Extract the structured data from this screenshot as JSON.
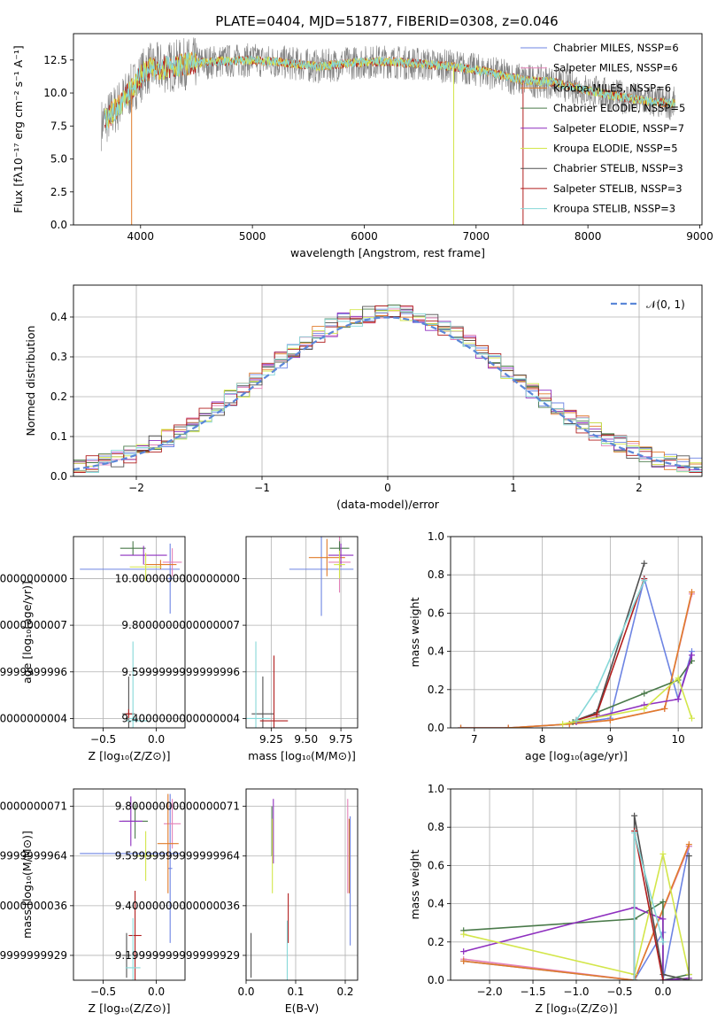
{
  "figure_title": "PLATE=0404, MJD=51877, FIBERID=0308, z=0.046",
  "colors": [
    "#6d84e3",
    "#e382b8",
    "#e07b2a",
    "#4a7a4a",
    "#8e2fbf",
    "#d3e64a",
    "#505050",
    "#b11e1e",
    "#86d8d8"
  ],
  "chart_data": [
    {
      "id": "spectrum",
      "type": "line",
      "title": "PLATE=0404, MJD=51877, FIBERID=0308, z=0.046",
      "xlabel": "wavelength [Angstrom, rest frame]",
      "ylabel": "Flux [fλ10⁻¹⁷ erg cm⁻² s⁻¹ A⁻¹]",
      "xlim": [
        3400,
        9020
      ],
      "ylim": [
        0,
        14.5
      ],
      "xticks": [
        4000,
        5000,
        6000,
        7000,
        8000,
        9000
      ],
      "yticks": [
        0.0,
        2.5,
        5.0,
        7.5,
        10.0,
        12.5
      ],
      "grid": false,
      "legend_position": "right",
      "legend": [
        "Chabrier MILES, NSSP=6",
        "Salpeter MILES, NSSP=6",
        "Kroupa MILES, NSSP=6",
        "Chabrier ELODIE, NSSP=5",
        "Salpeter ELODIE, NSSP=7",
        "Kroupa ELODIE, NSSP=5",
        "Chabrier STELIB, NSSP=3",
        "Salpeter STELIB, NSSP=3",
        "Kroupa STELIB, NSSP=3"
      ],
      "data_profile": {
        "x": [
          3650,
          3800,
          3950,
          4050,
          4200,
          4400,
          4700,
          5000,
          5300,
          5600,
          5900,
          6200,
          6500,
          6800,
          7100,
          7400,
          7700,
          8000,
          8300,
          8600,
          8780
        ],
        "y": [
          7.6,
          9.0,
          10.6,
          11.8,
          11.9,
          12.2,
          12.4,
          12.5,
          12.3,
          12.0,
          12.3,
          12.4,
          12.2,
          12.0,
          11.6,
          11.0,
          10.8,
          10.2,
          9.7,
          9.3,
          9.2
        ]
      },
      "drops": [
        {
          "x": 3920,
          "to": 0
        },
        {
          "x": 6800,
          "to": 0
        },
        {
          "x": 7420,
          "to": 0
        }
      ]
    },
    {
      "id": "residuals",
      "type": "line",
      "xlabel": "(data-model)/error",
      "ylabel": "Normed distribution",
      "xlim": [
        -2.5,
        2.5
      ],
      "ylim": [
        0,
        0.48
      ],
      "xticks": [
        -2,
        -1,
        0,
        1,
        2
      ],
      "yticks": [
        0.0,
        0.1,
        0.2,
        0.3,
        0.4
      ],
      "grid": true,
      "legend": [
        "𝒩(0, 1)"
      ],
      "legend_position": "top-right"
    },
    {
      "id": "age-vs-Z",
      "type": "scatter",
      "xlabel": "Z [log₁₀(Z/Z⊙)]",
      "ylabel": "age  [log₁₀(age/yr)]",
      "xlim": [
        -0.78,
        0.27
      ],
      "ylim": [
        9.36,
        10.18
      ],
      "xticks": [
        -0.5,
        0.0
      ],
      "yticks": [
        9.4,
        9.6,
        9.8,
        10.0
      ],
      "grid": true,
      "points": [
        {
          "c": 0,
          "x": -0.25,
          "y": 10.04,
          "xerr": 0.47,
          "yerr": 0.0
        },
        {
          "c": 0,
          "x": 0.13,
          "y": 10.0,
          "xerr": 0.02,
          "yerr": 0.15
        },
        {
          "c": 1,
          "x": 0.15,
          "y": 10.07,
          "xerr": 0.09,
          "yerr": 0.06
        },
        {
          "c": 2,
          "x": 0.04,
          "y": 10.06,
          "xerr": 0.15,
          "yerr": 0.02
        },
        {
          "c": 3,
          "x": -0.22,
          "y": 10.13,
          "xerr": 0.12,
          "yerr": 0.03
        },
        {
          "c": 4,
          "x": -0.12,
          "y": 10.1,
          "xerr": 0.22,
          "yerr": 0.04
        },
        {
          "c": 5,
          "x": -0.1,
          "y": 10.05,
          "xerr": 0.15,
          "yerr": 0.06
        },
        {
          "c": 6,
          "x": -0.26,
          "y": 9.42,
          "xerr": 0.06,
          "yerr": 0.16
        },
        {
          "c": 7,
          "x": -0.26,
          "y": 9.42,
          "xerr": 0.03,
          "yerr": 0.02
        },
        {
          "c": 8,
          "x": -0.22,
          "y": 9.4,
          "xerr": 0.04,
          "yerr": 0.33
        },
        {
          "c": 8,
          "x": -0.18,
          "y": 9.39,
          "xerr": 0.1,
          "yerr": 0.0
        }
      ]
    },
    {
      "id": "age-vs-mass",
      "type": "scatter",
      "xlabel": "mass [log₁₀(M/M⊙)]",
      "ylabel": "",
      "xlim": [
        9.07,
        9.87
      ],
      "ylim": [
        9.36,
        10.18
      ],
      "xticks": [
        9.25,
        9.5,
        9.75
      ],
      "yticks": [
        9.4,
        9.6,
        9.8,
        10.0
      ],
      "grid": true,
      "points": [
        {
          "c": 0,
          "x": 9.61,
          "y": 10.04,
          "xerr": 0.23,
          "yerr": 0.2
        },
        {
          "c": 1,
          "x": 9.74,
          "y": 10.07,
          "xerr": 0.08,
          "yerr": 0.13
        },
        {
          "c": 2,
          "x": 9.65,
          "y": 10.09,
          "xerr": 0.13,
          "yerr": 0.08
        },
        {
          "c": 3,
          "x": 9.74,
          "y": 10.13,
          "xerr": 0.07,
          "yerr": 0.03
        },
        {
          "c": 4,
          "x": 9.75,
          "y": 10.1,
          "xerr": 0.09,
          "yerr": 0.05
        },
        {
          "c": 5,
          "x": 9.74,
          "y": 10.06,
          "xerr": 0.04,
          "yerr": 0.06
        },
        {
          "c": 6,
          "x": 9.19,
          "y": 9.42,
          "xerr": 0.08,
          "yerr": 0.16
        },
        {
          "c": 7,
          "x": 9.27,
          "y": 9.39,
          "xerr": 0.1,
          "yerr": 0.28
        },
        {
          "c": 8,
          "x": 9.14,
          "y": 9.4,
          "xerr": 0.1,
          "yerr": 0.33
        }
      ]
    },
    {
      "id": "massweight-vs-age",
      "type": "line",
      "xlabel": "age  [log₁₀(age/yr)]",
      "ylabel": "mass weight",
      "xlim": [
        6.65,
        10.35
      ],
      "ylim": [
        0,
        1.0
      ],
      "xticks": [
        7,
        8,
        9,
        10
      ],
      "yticks": [
        0.0,
        0.2,
        0.4,
        0.6,
        0.8,
        1.0
      ],
      "grid": true,
      "series": [
        {
          "c": 0,
          "x": [
            6.8,
            7.5,
            8.4,
            9.0,
            9.5,
            10.0,
            10.2
          ],
          "y": [
            0.0,
            0.0,
            0.02,
            0.05,
            0.78,
            0.15,
            0.4
          ]
        },
        {
          "c": 1,
          "x": [
            6.8,
            7.5,
            8.4,
            9.0,
            9.8,
            10.2
          ],
          "y": [
            0.0,
            0.0,
            0.02,
            0.04,
            0.1,
            0.7
          ]
        },
        {
          "c": 2,
          "x": [
            6.8,
            7.5,
            8.4,
            9.0,
            9.8,
            10.2
          ],
          "y": [
            0.0,
            0.0,
            0.02,
            0.04,
            0.1,
            0.71
          ]
        },
        {
          "c": 3,
          "x": [
            8.45,
            9.5,
            10.0,
            10.2
          ],
          "y": [
            0.03,
            0.18,
            0.25,
            0.35
          ]
        },
        {
          "c": 4,
          "x": [
            8.5,
            9.5,
            10.0,
            10.2
          ],
          "y": [
            0.03,
            0.12,
            0.15,
            0.38
          ]
        },
        {
          "c": 5,
          "x": [
            8.3,
            9.5,
            10.0,
            10.2
          ],
          "y": [
            0.02,
            0.1,
            0.26,
            0.05
          ]
        },
        {
          "c": 6,
          "x": [
            8.5,
            8.8,
            9.5
          ],
          "y": [
            0.04,
            0.08,
            0.86
          ]
        },
        {
          "c": 7,
          "x": [
            8.5,
            8.8,
            9.5
          ],
          "y": [
            0.04,
            0.07,
            0.78
          ]
        },
        {
          "c": 8,
          "x": [
            8.5,
            8.8,
            9.5
          ],
          "y": [
            0.04,
            0.2,
            0.77
          ]
        }
      ]
    },
    {
      "id": "mass-vs-Z",
      "type": "scatter",
      "xlabel": "Z [log₁₀(Z/Z⊙)]",
      "ylabel": "mass [log₁₀(M/M⊙)]",
      "xlim": [
        -0.78,
        0.27
      ],
      "ylim": [
        9.1,
        9.87
      ],
      "xticks": [
        -0.5,
        0.0
      ],
      "yticks": [
        9.2,
        9.4,
        9.6,
        9.8
      ],
      "grid": true,
      "points": [
        {
          "c": 0,
          "x": -0.25,
          "y": 9.61,
          "xerr": 0.47,
          "yerr": 0.0
        },
        {
          "c": 0,
          "x": 0.13,
          "y": 9.55,
          "xerr": 0.02,
          "yerr": 0.3
        },
        {
          "c": 1,
          "x": 0.15,
          "y": 9.73,
          "xerr": 0.08,
          "yerr": 0.1
        },
        {
          "c": 2,
          "x": 0.11,
          "y": 9.65,
          "xerr": 0.1,
          "yerr": 0.2
        },
        {
          "c": 3,
          "x": -0.2,
          "y": 9.74,
          "xerr": 0.12,
          "yerr": 0.07
        },
        {
          "c": 4,
          "x": -0.24,
          "y": 9.74,
          "xerr": 0.11,
          "yerr": 0.1
        },
        {
          "c": 5,
          "x": -0.1,
          "y": 9.6,
          "xerr": 0.1,
          "yerr": 0.1
        },
        {
          "c": 6,
          "x": -0.28,
          "y": 9.2,
          "xerr": 0.04,
          "yerr": 0.09
        },
        {
          "c": 7,
          "x": -0.2,
          "y": 9.28,
          "xerr": 0.06,
          "yerr": 0.18
        },
        {
          "c": 8,
          "x": -0.22,
          "y": 9.15,
          "xerr": 0.07,
          "yerr": 0.2
        }
      ]
    },
    {
      "id": "mass-vs-ebv",
      "type": "scatter",
      "xlabel": "E(B-V)",
      "ylabel": "",
      "xlim": [
        0.0,
        0.225
      ],
      "ylim": [
        9.1,
        9.87
      ],
      "xticks": [
        0.0,
        0.1,
        0.2
      ],
      "yticks": [
        9.2,
        9.4,
        9.6,
        9.8
      ],
      "grid": true,
      "points": [
        {
          "c": 0,
          "x": 0.21,
          "y": 9.5,
          "xerr": 0.0,
          "yerr": 0.26
        },
        {
          "c": 1,
          "x": 0.205,
          "y": 9.64,
          "xerr": 0.0,
          "yerr": 0.19
        },
        {
          "c": 2,
          "x": 0.208,
          "y": 9.6,
          "xerr": 0.0,
          "yerr": 0.15
        },
        {
          "c": 3,
          "x": 0.052,
          "y": 9.7,
          "xerr": 0.0,
          "yerr": 0.1
        },
        {
          "c": 4,
          "x": 0.055,
          "y": 9.7,
          "xerr": 0.0,
          "yerr": 0.13
        },
        {
          "c": 5,
          "x": 0.053,
          "y": 9.6,
          "xerr": 0.0,
          "yerr": 0.15
        },
        {
          "c": 6,
          "x": 0.01,
          "y": 9.2,
          "xerr": 0.0,
          "yerr": 0.09
        },
        {
          "c": 7,
          "x": 0.085,
          "y": 9.35,
          "xerr": 0.0,
          "yerr": 0.1
        },
        {
          "c": 8,
          "x": 0.083,
          "y": 9.22,
          "xerr": 0.0,
          "yerr": 0.12
        }
      ]
    },
    {
      "id": "massweight-vs-Z",
      "type": "line",
      "xlabel": "Z [log₁₀(Z/Z⊙)]",
      "ylabel": "mass weight",
      "xlim": [
        -2.45,
        0.45
      ],
      "ylim": [
        0,
        1.0
      ],
      "xticks": [
        -2.0,
        -1.5,
        -1.0,
        -0.5,
        0.0
      ],
      "yticks": [
        0.0,
        0.2,
        0.4,
        0.6,
        0.8,
        1.0
      ],
      "grid": true,
      "series": [
        {
          "c": 0,
          "x": [
            -2.3,
            -0.33,
            0.0,
            0.0,
            0.3
          ],
          "y": [
            0.1,
            0.0,
            0.25,
            0.0,
            0.7
          ]
        },
        {
          "c": 1,
          "x": [
            -2.3,
            -0.33,
            0.3
          ],
          "y": [
            0.11,
            0.0,
            0.7
          ]
        },
        {
          "c": 2,
          "x": [
            -2.3,
            -0.33,
            0.3
          ],
          "y": [
            0.1,
            0.0,
            0.71
          ]
        },
        {
          "c": 3,
          "x": [
            -2.3,
            -0.33,
            0.0,
            0.0,
            0.3
          ],
          "y": [
            0.26,
            0.32,
            0.41,
            0.0,
            0.03
          ]
        },
        {
          "c": 4,
          "x": [
            -2.3,
            -0.33,
            0.0,
            0.0,
            0.3
          ],
          "y": [
            0.15,
            0.38,
            0.32,
            0.0,
            0.01
          ]
        },
        {
          "c": 5,
          "x": [
            -2.3,
            -0.33,
            0.0,
            0.3
          ],
          "y": [
            0.24,
            0.03,
            0.66,
            0.03
          ]
        },
        {
          "c": 6,
          "x": [
            -0.33,
            -0.33,
            0.0,
            0.3,
            0.3
          ],
          "y": [
            0.0,
            0.86,
            0.03,
            0.0,
            0.65
          ]
        },
        {
          "c": 7,
          "x": [
            -0.33,
            -0.33,
            0.0
          ],
          "y": [
            0.0,
            0.78,
            0.0
          ]
        },
        {
          "c": 8,
          "x": [
            -0.33,
            -0.33,
            0.0
          ],
          "y": [
            0.0,
            0.77,
            0.2
          ]
        }
      ]
    }
  ]
}
